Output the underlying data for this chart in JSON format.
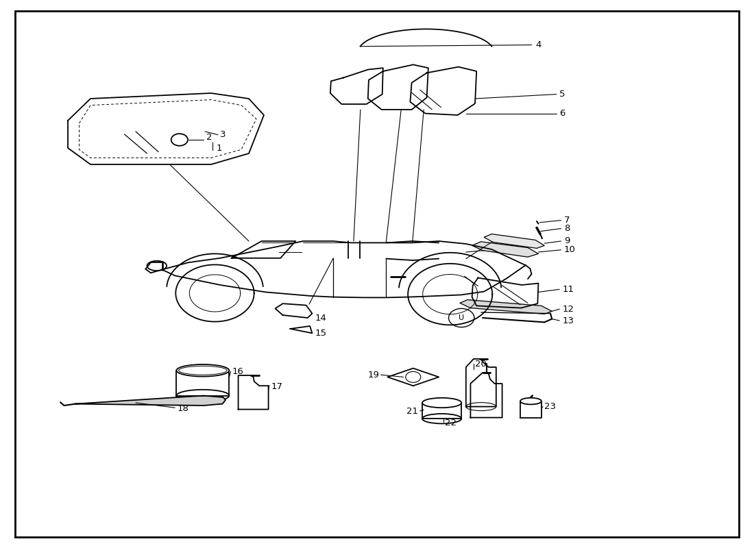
{
  "background_color": "#ffffff",
  "line_color": "#000000",
  "figsize": [
    11.0,
    8.0
  ],
  "dpi": 100
}
